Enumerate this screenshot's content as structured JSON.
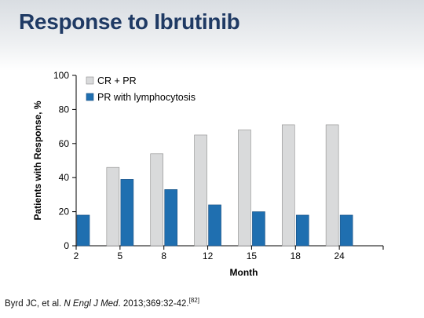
{
  "title": "Response to Ibrutinib",
  "citation": {
    "authors": "Byrd JC, et al.",
    "journal": "N Engl J Med",
    "details": ". 2013;369:32-42.",
    "ref": "[82]"
  },
  "chart_data": {
    "type": "bar",
    "title": "",
    "xlabel": "Month",
    "ylabel": "Patients with Response, %",
    "categories": [
      "2",
      "5",
      "8",
      "12",
      "15",
      "18",
      "24"
    ],
    "ylim": [
      0,
      100
    ],
    "yticks": [
      0,
      20,
      40,
      60,
      80,
      100
    ],
    "grid": false,
    "legend_position": "top-left",
    "series": [
      {
        "name": "CR + PR",
        "values": [
          null,
          46,
          54,
          65,
          68,
          71,
          71
        ],
        "color": "#d9dadb"
      },
      {
        "name": "PR with lymphocytosis",
        "values": [
          18,
          39,
          33,
          24,
          20,
          18,
          18
        ],
        "color": "#1f6fb0"
      }
    ]
  }
}
